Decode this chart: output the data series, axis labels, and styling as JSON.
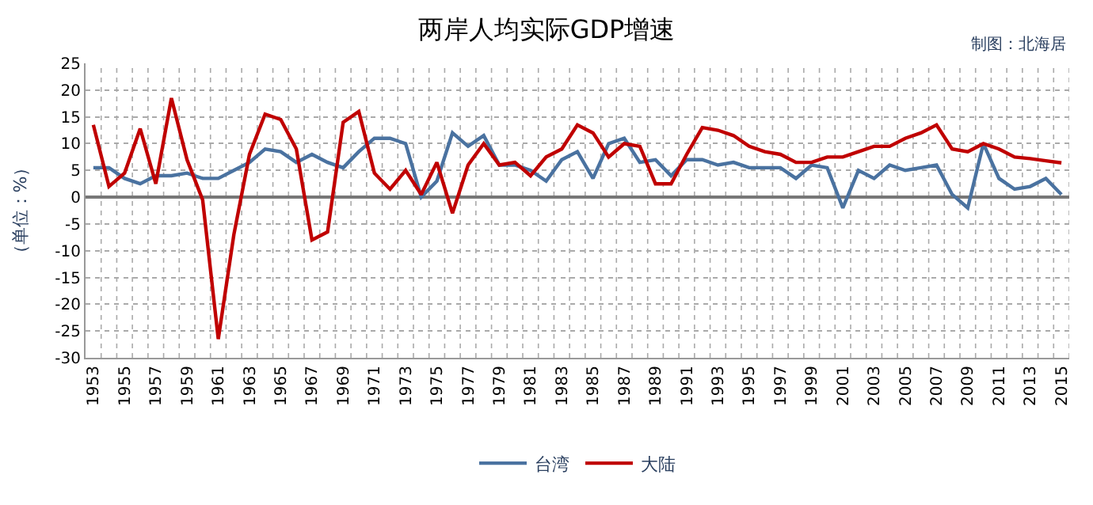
{
  "chart_data": {
    "type": "line",
    "title": "两岸人均实际GDP增速",
    "ylabel": "（单位：%）",
    "annotations": [
      "制图：北海居"
    ],
    "categories": [
      "1953",
      null,
      "1955",
      null,
      "1957",
      null,
      "1959",
      null,
      "1961",
      null,
      "1963",
      null,
      "1965",
      null,
      "1967",
      null,
      "1969",
      null,
      "1971",
      null,
      "1973",
      null,
      "1975",
      null,
      "1977",
      null,
      "1979",
      null,
      "1981",
      null,
      "1983",
      null,
      "1985",
      null,
      "1987",
      null,
      "1989",
      null,
      "1991",
      null,
      "1993",
      null,
      "1995",
      null,
      "1997",
      null,
      "1999",
      null,
      "2001",
      null,
      "2003",
      null,
      "2005",
      null,
      "2007",
      null,
      "2009",
      null,
      "2011",
      null,
      "2013",
      null,
      "2015"
    ],
    "series": [
      {
        "name": "台湾",
        "color": "#4a72a0",
        "values": [
          5.5,
          5.5,
          3.5,
          2.5,
          4,
          4,
          4.5,
          3.5,
          3.5,
          5,
          6.5,
          9,
          8.5,
          6.5,
          8,
          6.5,
          5.5,
          8.5,
          11,
          11,
          10,
          0,
          3,
          12,
          9.5,
          11.5,
          6,
          6,
          5,
          3,
          7,
          8.5,
          3.5,
          10,
          11,
          6.5,
          7,
          4,
          7,
          7,
          6,
          6.5,
          5.5,
          5.5,
          5.5,
          3.5,
          6,
          5.5,
          -2,
          5,
          3.5,
          6,
          5,
          5.5,
          6,
          0.5,
          -2,
          10,
          3.5,
          1.5,
          2,
          3.5,
          0.5
        ]
      },
      {
        "name": "大陆",
        "color": "#c00000",
        "values": [
          13.5,
          2,
          4.5,
          12.8,
          2.5,
          18.5,
          7,
          -0.5,
          -26.5,
          -7,
          8,
          15.5,
          14.5,
          9,
          -8,
          -6.5,
          14,
          16,
          4.5,
          1.5,
          5,
          0.5,
          6.5,
          -3,
          6,
          10,
          6,
          6.5,
          4,
          7.5,
          9,
          13.5,
          12,
          7.5,
          10,
          9.5,
          2.5,
          2.5,
          8,
          13,
          12.5,
          11.5,
          9.5,
          8.5,
          8,
          6.5,
          6.5,
          7.5,
          7.5,
          8.5,
          9.5,
          9.5,
          11,
          12,
          13.5,
          9,
          8.5,
          10,
          9,
          7.5,
          7.2,
          6.8,
          6.4
        ]
      }
    ],
    "ylim": [
      -30,
      25
    ],
    "yticks": [
      -30,
      -25,
      -20,
      -15,
      -10,
      -5,
      0,
      5,
      10,
      15,
      20,
      25
    ],
    "grid": true,
    "legend": "bottom",
    "marker": "none",
    "line_style": "solid"
  }
}
